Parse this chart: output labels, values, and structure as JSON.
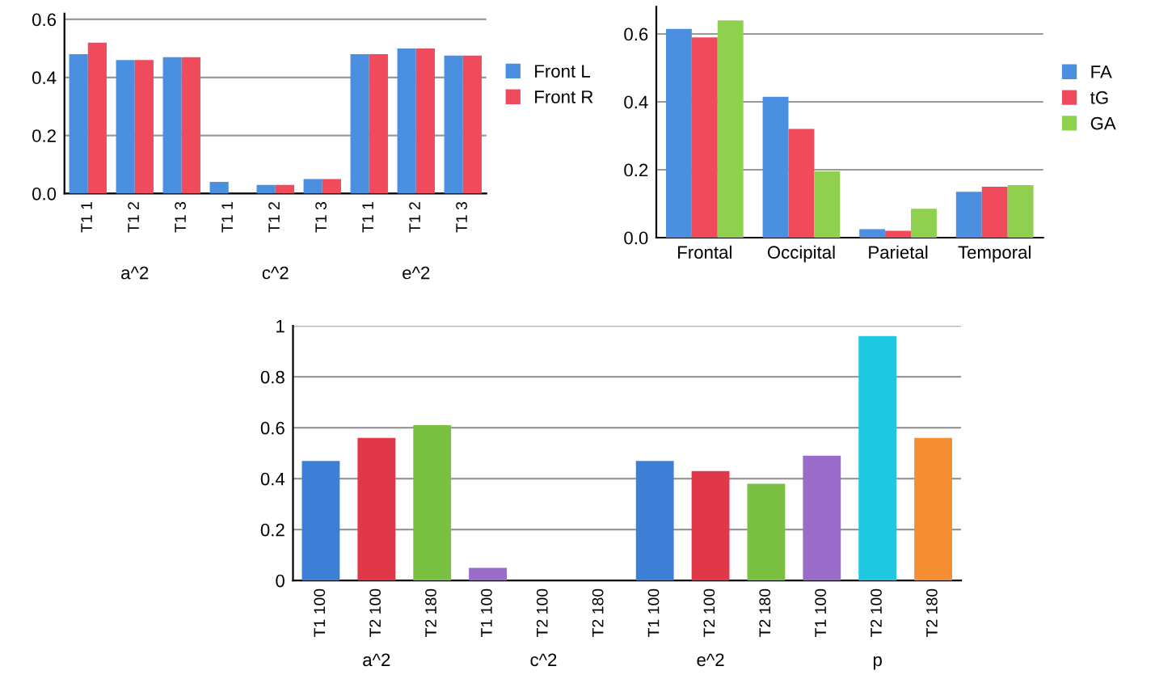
{
  "chart_data": [
    {
      "type": "bar",
      "categories": [
        "T1 1",
        "T1 2",
        "T1 3",
        "T1 1",
        "T1 2",
        "T1 3",
        "T1 1",
        "T1 2",
        "T1 3"
      ],
      "annotations": [
        "a^2",
        "c^2",
        "e^2"
      ],
      "series": [
        {
          "name": "Front L",
          "color": "#4a8fe0",
          "values": [
            0.48,
            0.46,
            0.47,
            0.04,
            0.03,
            0.05,
            0.48,
            0.5,
            0.475
          ]
        },
        {
          "name": "Front R",
          "color": "#ef4b5c",
          "values": [
            0.52,
            0.46,
            0.47,
            0,
            0.03,
            0.05,
            0.48,
            0.5,
            0.475
          ]
        }
      ],
      "ylim": [
        0,
        0.62
      ],
      "yticks": [
        {
          "value": 0,
          "label": "0.0"
        },
        {
          "value": 0.2,
          "label": "0.2"
        },
        {
          "value": 0.4,
          "label": "0.4"
        },
        {
          "value": 0.6,
          "label": "0.6"
        }
      ],
      "grid": "y",
      "legend": "right"
    },
    {
      "type": "bar",
      "categories": [
        "Frontal",
        "Occipital",
        "Parietal",
        "Temporal"
      ],
      "series": [
        {
          "name": "FA",
          "color": "#4a8fe0",
          "values": [
            0.615,
            0.415,
            0.025,
            0.135
          ]
        },
        {
          "name": "tG",
          "color": "#ef4b5c",
          "values": [
            0.59,
            0.32,
            0.02,
            0.15
          ]
        },
        {
          "name": "GA",
          "color": "#8fd14f",
          "values": [
            0.64,
            0.195,
            0.085,
            0.155
          ]
        }
      ],
      "ylim": [
        0,
        0.68
      ],
      "yticks": [
        {
          "value": 0,
          "label": "0.0"
        },
        {
          "value": 0.2,
          "label": "0.2"
        },
        {
          "value": 0.4,
          "label": "0.4"
        },
        {
          "value": 0.6,
          "label": "0.6"
        }
      ],
      "grid": "y",
      "legend": "right"
    },
    {
      "type": "bar",
      "categories": [
        "T1 100",
        "T2 100",
        "T2 180",
        "T1 100",
        "T2 100",
        "T2 180",
        "T1 100",
        "T2 100",
        "T2 180",
        "T1 100",
        "T2 100",
        "T2 180"
      ],
      "annotations": [
        "a^2",
        "c^2",
        "e^2",
        "p"
      ],
      "values": [
        0.47,
        0.56,
        0.61,
        0.05,
        0,
        0,
        0.47,
        0.43,
        0.38,
        0.49,
        0.96,
        0.56
      ],
      "colors": [
        "#3d7fd6",
        "#e03848",
        "#7ac143",
        "#9a6bc8",
        "#9a6bc8",
        "#9a6bc8",
        "#3d7fd6",
        "#e03848",
        "#7ac143",
        "#9a6bc8",
        "#1ec8e0",
        "#f58d33"
      ],
      "ylim": [
        0,
        1
      ],
      "yticks": [
        0,
        0.2,
        0.4,
        0.6,
        0.8,
        1
      ],
      "grid": "y"
    }
  ]
}
